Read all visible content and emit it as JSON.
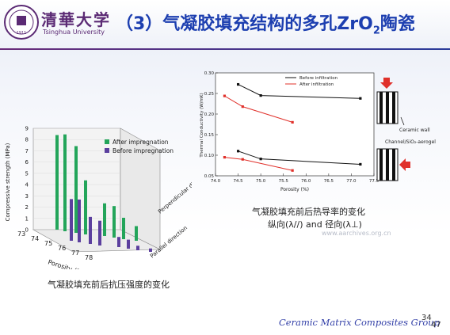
{
  "header": {
    "university_cn": "清華大学",
    "university_en": "Tsinghua University",
    "seal_text": "1911",
    "title_main": "（3）气凝胶填充结构的多孔ZrO",
    "title_sub": "2",
    "title_tail": "陶瓷"
  },
  "left_chart": {
    "ylabel": "Compressive strength (MPa)",
    "xlabel": "Porosity (%)",
    "zlabel_perp": "Perpendicular direction",
    "zlabel_par": "Parallel direction",
    "yticks": [
      "0",
      "1",
      "2",
      "3",
      "4",
      "5",
      "6",
      "7",
      "8",
      "9"
    ],
    "xticks": [
      "73",
      "74",
      "75",
      "76",
      "77",
      "78"
    ],
    "legend": [
      "After impregnation",
      "Before impregnation"
    ],
    "caption": "气凝胶填充前后抗压强度的变化",
    "colors": {
      "after": "#23a55a",
      "before": "#5b3f9e"
    }
  },
  "right_chart": {
    "ylabel": "Thermal Conductivity (W/mK)",
    "xlabel": "Porosity (%)",
    "yticks": [
      "0.05",
      "0.10",
      "0.15",
      "0.20",
      "0.25",
      "0.30"
    ],
    "xticks": [
      "74.0",
      "74.5",
      "75.0",
      "75.5",
      "76.0",
      "76.5",
      "77.0",
      "77.5"
    ],
    "legend": [
      "Before infiltration",
      "After infiltration"
    ],
    "diagram_labels": {
      "wall": "Ceramic wall",
      "channel": "Channel/SiO₂-aerogel"
    },
    "caption1": "气凝胶填充前后热导率的变化",
    "caption2": "纵向(λ//) and 径向(λ⊥)",
    "colors": {
      "before": "#111111",
      "after": "#e0302a"
    }
  },
  "chart_data": [
    {
      "type": "bar",
      "xlabel": "Porosity (%)",
      "ylabel": "Compressive strength (MPa)",
      "ylim": [
        0,
        9
      ],
      "series": [
        {
          "name": "After impregnation",
          "values": [
            8.4,
            8.6,
            7.7,
            4.8,
            2.9,
            2.8,
            1.9,
            1.3
          ]
        },
        {
          "name": "Before impregnation",
          "values": [
            3.7,
            3.8,
            2.4,
            2.2,
            0.9,
            0.8,
            0.4,
            0.3
          ]
        }
      ],
      "legend": "top-right"
    },
    {
      "type": "line",
      "xlabel": "Porosity (%)",
      "ylabel": "Thermal Conductivity (W/mK)",
      "ylim": [
        0.05,
        0.3
      ],
      "xlim": [
        74.0,
        77.5
      ],
      "series": [
        {
          "name": "Before infiltration (λ//)",
          "x": [
            74.5,
            75.0,
            77.2
          ],
          "y": [
            0.272,
            0.245,
            0.238
          ]
        },
        {
          "name": "After infiltration (λ//)",
          "x": [
            74.2,
            74.6,
            75.7
          ],
          "y": [
            0.244,
            0.218,
            0.18
          ]
        },
        {
          "name": "Before infiltration (λ⊥)",
          "x": [
            74.5,
            75.0,
            77.2
          ],
          "y": [
            0.11,
            0.091,
            0.078
          ]
        },
        {
          "name": "After infiltration (λ⊥)",
          "x": [
            74.2,
            74.6,
            75.7
          ],
          "y": [
            0.095,
            0.09,
            0.063
          ]
        }
      ],
      "legend": "top-right"
    }
  ],
  "watermark": "www.aarchives.org.cn",
  "footer": {
    "group": "Ceramic Matrix Composites Group",
    "page_a": "34",
    "page_b": "47"
  }
}
